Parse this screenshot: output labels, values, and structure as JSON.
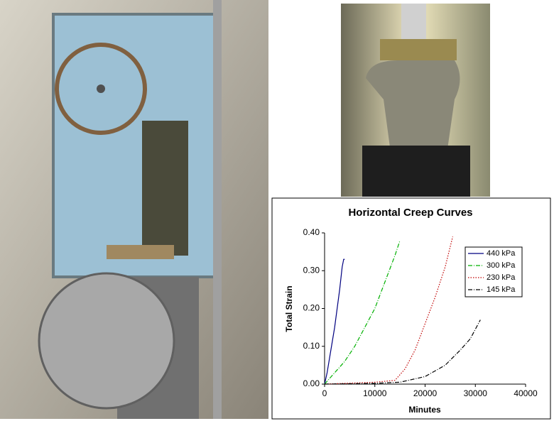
{
  "chart_data": {
    "type": "line",
    "title": "Horizontal Creep Curves",
    "x_label": "Minutes",
    "y_label": "Total Strain",
    "xlim": [
      0,
      40000
    ],
    "xticks": [
      0,
      10000,
      20000,
      30000,
      40000
    ],
    "ylim": [
      0,
      0.4
    ],
    "yticks": [
      {
        "value": 0,
        "label": "0.00"
      },
      {
        "value": 0.1,
        "label": "0.10"
      },
      {
        "value": 0.2,
        "label": "0.20"
      },
      {
        "value": 0.3,
        "label": "0.30"
      },
      {
        "value": 0.4,
        "label": "0.40"
      }
    ],
    "legend": "upper right",
    "series": [
      {
        "name": "440 kPa",
        "color": "#000080",
        "dash": "solid",
        "x": [
          0,
          500,
          1000,
          2000,
          3000,
          3500,
          3800,
          4000
        ],
        "values": [
          0,
          0.03,
          0.07,
          0.15,
          0.25,
          0.31,
          0.33,
          0.33
        ]
      },
      {
        "name": "300 kPa",
        "color": "#00b000",
        "dash": "dashdot",
        "x": [
          0,
          2000,
          4000,
          6000,
          8000,
          10000,
          12000,
          14000,
          15000
        ],
        "values": [
          0,
          0.03,
          0.06,
          0.1,
          0.15,
          0.2,
          0.27,
          0.34,
          0.38
        ]
      },
      {
        "name": "230 kPa",
        "color": "#c00000",
        "dash": "dotted",
        "x": [
          0,
          10000,
          14000,
          16000,
          18000,
          20000,
          22000,
          24000,
          25500
        ],
        "values": [
          0,
          0.005,
          0.01,
          0.04,
          0.09,
          0.16,
          0.23,
          0.31,
          0.39
        ]
      },
      {
        "name": "145 kPa",
        "color": "#000000",
        "dash": "dashdot",
        "x": [
          0,
          10000,
          15000,
          20000,
          24000,
          27000,
          29000,
          31000
        ],
        "values": [
          0,
          0.002,
          0.005,
          0.02,
          0.05,
          0.09,
          0.12,
          0.17
        ]
      }
    ]
  }
}
